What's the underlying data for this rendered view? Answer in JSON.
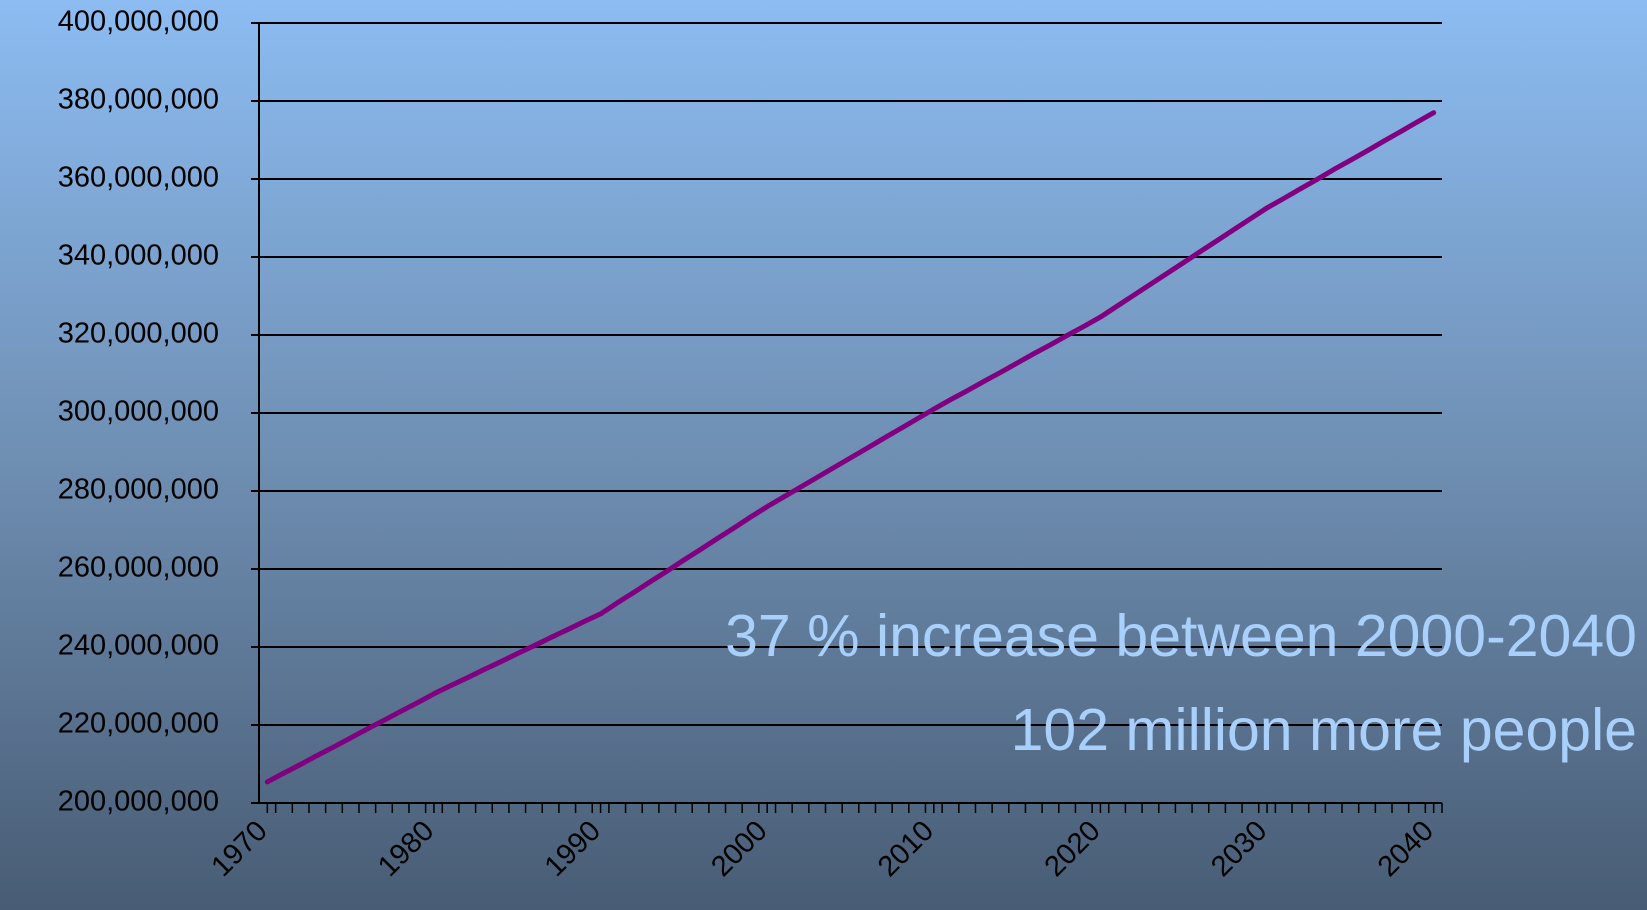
{
  "chart_data": {
    "type": "line",
    "annotations": [
      "37 % increase between 2000-2040",
      "102 million more people"
    ],
    "x": [
      1970,
      1971,
      1972,
      1973,
      1974,
      1975,
      1976,
      1977,
      1978,
      1979,
      1980,
      1981,
      1982,
      1983,
      1984,
      1985,
      1986,
      1987,
      1988,
      1989,
      1990,
      1991,
      1992,
      1993,
      1994,
      1995,
      1996,
      1997,
      1998,
      1999,
      2000,
      2001,
      2002,
      2003,
      2004,
      2005,
      2006,
      2007,
      2008,
      2009,
      2010,
      2011,
      2012,
      2013,
      2014,
      2015,
      2016,
      2017,
      2018,
      2019,
      2020,
      2021,
      2022,
      2023,
      2024,
      2025,
      2026,
      2027,
      2028,
      2029,
      2030,
      2031,
      2032,
      2033,
      2034,
      2035,
      2036,
      2037,
      2038,
      2039,
      2040
    ],
    "series": [
      {
        "color": "#800080",
        "values": [
          205400000,
          207700000,
          209900000,
          212200000,
          214400000,
          216700000,
          219000000,
          221200000,
          223500000,
          225700000,
          228000000,
          230100000,
          232100000,
          234200000,
          236200000,
          238300000,
          240300000,
          242400000,
          244400000,
          246500000,
          248500000,
          251300000,
          254000000,
          256800000,
          259500000,
          262300000,
          265000000,
          267800000,
          270500000,
          273300000,
          276000000,
          278500000,
          281000000,
          283500000,
          286000000,
          288500000,
          291000000,
          293500000,
          296000000,
          298500000,
          301000000,
          303400000,
          305700000,
          308100000,
          310400000,
          312800000,
          315200000,
          317500000,
          319900000,
          322200000,
          324600000,
          327400000,
          330200000,
          333000000,
          335800000,
          338600000,
          341400000,
          344200000,
          347000000,
          349800000,
          352600000,
          355000000,
          357500000,
          359900000,
          362400000,
          364800000,
          367200000,
          369700000,
          372100000,
          374600000,
          377000000
        ]
      }
    ],
    "xlim": [
      1969.5,
      2040.5
    ],
    "xticks": [
      1970,
      1980,
      1990,
      2000,
      2010,
      2020,
      2030,
      2040
    ],
    "ylim": [
      200000000,
      400000000
    ],
    "yticks": [
      {
        "value": 200000000,
        "label": "200,000,000"
      },
      {
        "value": 220000000,
        "label": "220,000,000"
      },
      {
        "value": 240000000,
        "label": "240,000,000"
      },
      {
        "value": 260000000,
        "label": "260,000,000"
      },
      {
        "value": 280000000,
        "label": "280,000,000"
      },
      {
        "value": 300000000,
        "label": "300,000,000"
      },
      {
        "value": 320000000,
        "label": "320,000,000"
      },
      {
        "value": 340000000,
        "label": "340,000,000"
      },
      {
        "value": 360000000,
        "label": "360,000,000"
      },
      {
        "value": 380000000,
        "label": "380,000,000"
      },
      {
        "value": 400000000,
        "label": "400,000,000"
      }
    ],
    "grid": true
  }
}
